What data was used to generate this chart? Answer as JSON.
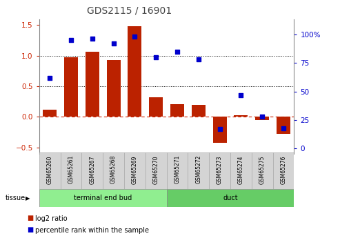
{
  "title": "GDS2115 / 16901",
  "samples": [
    "GSM65260",
    "GSM65261",
    "GSM65267",
    "GSM65268",
    "GSM65269",
    "GSM65270",
    "GSM65271",
    "GSM65272",
    "GSM65273",
    "GSM65274",
    "GSM65275",
    "GSM65276"
  ],
  "log2_ratio": [
    0.12,
    0.98,
    1.06,
    0.93,
    1.48,
    0.32,
    0.21,
    0.2,
    -0.42,
    0.03,
    -0.05,
    -0.28
  ],
  "percentile_rank": [
    62,
    95,
    96,
    92,
    98,
    80,
    85,
    78,
    17,
    47,
    28,
    18
  ],
  "tissue_groups": [
    {
      "label": "terminal end bud",
      "start": 0,
      "end": 6,
      "color": "#90EE90"
    },
    {
      "label": "duct",
      "start": 6,
      "end": 12,
      "color": "#66CC66"
    }
  ],
  "bar_color": "#BB2200",
  "dot_color": "#0000CC",
  "ylim_left": [
    -0.6,
    1.6
  ],
  "ylim_right": [
    -4.27,
    113.3
  ],
  "yticks_left": [
    -0.5,
    0.0,
    0.5,
    1.0,
    1.5
  ],
  "yticks_right": [
    0,
    25,
    50,
    75,
    100
  ],
  "zero_line_color": "#CC2200",
  "dotted_line_color": "#000000",
  "background_color": "#ffffff",
  "plot_bg": "#ffffff",
  "left_axis_color": "#CC2200",
  "right_axis_color": "#0000CC"
}
